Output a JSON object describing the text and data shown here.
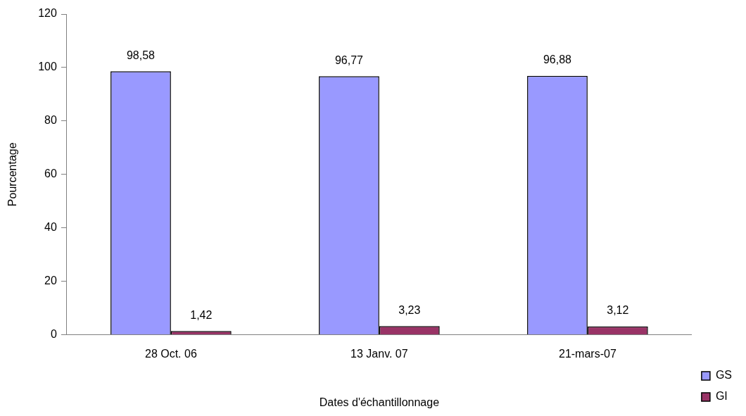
{
  "chart_data": {
    "type": "bar",
    "xlabel": "Dates d'échantillonnage",
    "ylabel": "Pourcentage",
    "categories": [
      "28 Oct. 06",
      "13 Janv. 07",
      "21-mars-07"
    ],
    "series": [
      {
        "name": "GS",
        "color": "#9999ff",
        "values": [
          98.58,
          96.77,
          96.88
        ],
        "value_labels": [
          "98,58",
          "96,77",
          "96,88"
        ]
      },
      {
        "name": "GI",
        "color": "#993366",
        "values": [
          1.42,
          3.23,
          3.12
        ],
        "value_labels": [
          "1,42",
          "3,23",
          "3,12"
        ]
      }
    ],
    "ylim": [
      0,
      120
    ],
    "yticks": [
      0,
      20,
      40,
      60,
      80,
      100,
      120
    ],
    "grid": false,
    "legend": "right"
  }
}
